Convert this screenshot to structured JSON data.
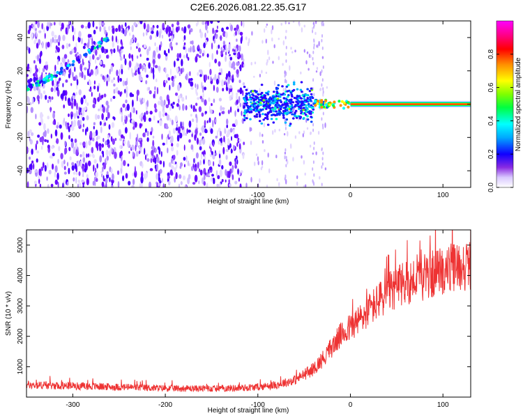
{
  "title": "C2E6.2026.081.22.35.G17",
  "chart_data": [
    {
      "type": "heatmap",
      "name": "spectrogram",
      "xlabel": "Height of straight line (km)",
      "ylabel": "Frequency (Hz)",
      "xlim": [
        -350,
        130
      ],
      "ylim": [
        -50,
        50
      ],
      "xticks": [
        -300,
        -200,
        -100,
        0,
        100
      ],
      "yticks": [
        -40,
        -20,
        0,
        20,
        40
      ],
      "colorbar": {
        "label": "Normalized spectral amplitude",
        "ticks": [
          0.0,
          0.2,
          0.4,
          0.6,
          0.8
        ],
        "range": [
          0,
          1
        ],
        "colormap": [
          "#ffffff",
          "#c9b3ff",
          "#7a1fff",
          "#2d00ff",
          "#0000ff",
          "#00b4ff",
          "#00ffff",
          "#00ff80",
          "#00ff00",
          "#b4ff00",
          "#ffff00",
          "#ffb400",
          "#ff5000",
          "#ff0000",
          "#ff0096",
          "#ff00ff"
        ]
      },
      "features": [
        {
          "name": "rising tone",
          "x": [
            -350,
            -320,
            -300,
            -280,
            -260
          ],
          "y": [
            9,
            17,
            25,
            33,
            40
          ]
        },
        {
          "name": "carrier",
          "x": [
            0,
            130
          ],
          "y": [
            0,
            0
          ]
        }
      ]
    },
    {
      "type": "line",
      "name": "snr",
      "xlabel": "Height of straight line (km)",
      "ylabel": "SNR (10 * v/v)",
      "xlim": [
        -350,
        130
      ],
      "ylim": [
        0,
        5500
      ],
      "xticks": [
        -300,
        -200,
        -100,
        0,
        100
      ],
      "yticks": [
        1000,
        2000,
        3000,
        4000,
        5000
      ],
      "color": "#ee3333",
      "x": [
        -350,
        -300,
        -250,
        -200,
        -150,
        -120,
        -100,
        -80,
        -60,
        -40,
        -30,
        -20,
        -10,
        0,
        10,
        20,
        30,
        40,
        50,
        60,
        70,
        80,
        90,
        100,
        110,
        120,
        130
      ],
      "y": [
        400,
        370,
        330,
        290,
        280,
        300,
        330,
        400,
        560,
        920,
        1250,
        1650,
        2050,
        2300,
        2550,
        2850,
        3150,
        3400,
        3600,
        3750,
        3850,
        3950,
        4050,
        4150,
        4250,
        4300,
        4350
      ]
    }
  ]
}
